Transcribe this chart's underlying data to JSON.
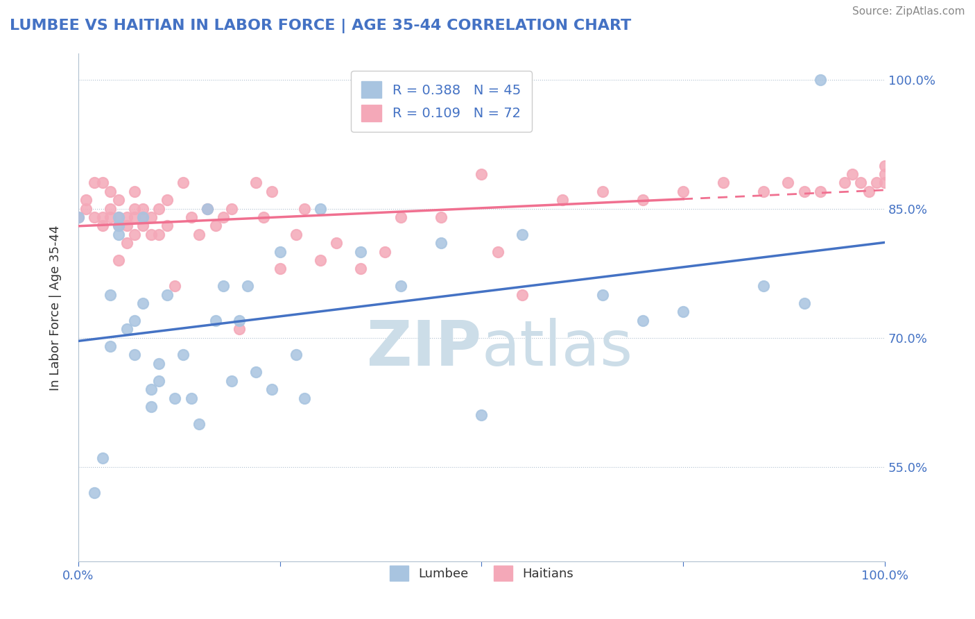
{
  "title": "LUMBEE VS HAITIAN IN LABOR FORCE | AGE 35-44 CORRELATION CHART",
  "source_text": "Source: ZipAtlas.com",
  "xlabel": "",
  "ylabel": "In Labor Force | Age 35-44",
  "xlim": [
    0.0,
    1.0
  ],
  "ylim": [
    0.44,
    1.03
  ],
  "yticks": [
    0.55,
    0.7,
    0.85,
    1.0
  ],
  "ytick_labels": [
    "55.0%",
    "70.0%",
    "85.0%",
    "100.0%"
  ],
  "xticks": [
    0.0,
    0.25,
    0.5,
    0.75,
    1.0
  ],
  "xtick_labels": [
    "0.0%",
    "",
    "",
    "",
    "100.0%"
  ],
  "lumbee_R": 0.388,
  "lumbee_N": 45,
  "haitian_R": 0.109,
  "haitian_N": 72,
  "lumbee_color": "#a8c4e0",
  "haitian_color": "#f4a8b8",
  "lumbee_line_color": "#4472c4",
  "haitian_line_color": "#f07090",
  "watermark_color": "#ccdde8",
  "background_color": "#ffffff",
  "lumbee_x": [
    0.0,
    0.02,
    0.03,
    0.04,
    0.04,
    0.05,
    0.05,
    0.05,
    0.06,
    0.07,
    0.07,
    0.08,
    0.08,
    0.09,
    0.09,
    0.1,
    0.1,
    0.11,
    0.12,
    0.13,
    0.14,
    0.15,
    0.16,
    0.17,
    0.18,
    0.19,
    0.2,
    0.21,
    0.22,
    0.24,
    0.25,
    0.27,
    0.28,
    0.3,
    0.35,
    0.4,
    0.45,
    0.5,
    0.55,
    0.65,
    0.7,
    0.75,
    0.85,
    0.9,
    0.92
  ],
  "lumbee_y": [
    0.84,
    0.52,
    0.56,
    0.69,
    0.75,
    0.82,
    0.83,
    0.84,
    0.71,
    0.68,
    0.72,
    0.74,
    0.84,
    0.62,
    0.64,
    0.65,
    0.67,
    0.75,
    0.63,
    0.68,
    0.63,
    0.6,
    0.85,
    0.72,
    0.76,
    0.65,
    0.72,
    0.76,
    0.66,
    0.64,
    0.8,
    0.68,
    0.63,
    0.85,
    0.8,
    0.76,
    0.81,
    0.61,
    0.82,
    0.75,
    0.72,
    0.73,
    0.76,
    0.74,
    1.0
  ],
  "haitian_x": [
    0.0,
    0.01,
    0.01,
    0.02,
    0.02,
    0.03,
    0.03,
    0.03,
    0.04,
    0.04,
    0.04,
    0.05,
    0.05,
    0.05,
    0.05,
    0.06,
    0.06,
    0.06,
    0.07,
    0.07,
    0.07,
    0.07,
    0.08,
    0.08,
    0.08,
    0.09,
    0.09,
    0.1,
    0.1,
    0.11,
    0.11,
    0.12,
    0.13,
    0.14,
    0.15,
    0.16,
    0.17,
    0.18,
    0.19,
    0.2,
    0.22,
    0.23,
    0.24,
    0.25,
    0.27,
    0.28,
    0.3,
    0.32,
    0.35,
    0.38,
    0.4,
    0.45,
    0.5,
    0.52,
    0.55,
    0.6,
    0.65,
    0.7,
    0.75,
    0.8,
    0.85,
    0.88,
    0.9,
    0.92,
    0.95,
    0.96,
    0.97,
    0.98,
    0.99,
    1.0,
    1.0,
    1.0
  ],
  "haitian_y": [
    0.84,
    0.85,
    0.86,
    0.84,
    0.88,
    0.83,
    0.84,
    0.88,
    0.84,
    0.85,
    0.87,
    0.79,
    0.83,
    0.84,
    0.86,
    0.81,
    0.83,
    0.84,
    0.82,
    0.84,
    0.85,
    0.87,
    0.83,
    0.84,
    0.85,
    0.82,
    0.84,
    0.82,
    0.85,
    0.83,
    0.86,
    0.76,
    0.88,
    0.84,
    0.82,
    0.85,
    0.83,
    0.84,
    0.85,
    0.71,
    0.88,
    0.84,
    0.87,
    0.78,
    0.82,
    0.85,
    0.79,
    0.81,
    0.78,
    0.8,
    0.84,
    0.84,
    0.89,
    0.8,
    0.75,
    0.86,
    0.87,
    0.86,
    0.87,
    0.88,
    0.87,
    0.88,
    0.87,
    0.87,
    0.88,
    0.89,
    0.88,
    0.87,
    0.88,
    0.88,
    0.89,
    0.9
  ]
}
